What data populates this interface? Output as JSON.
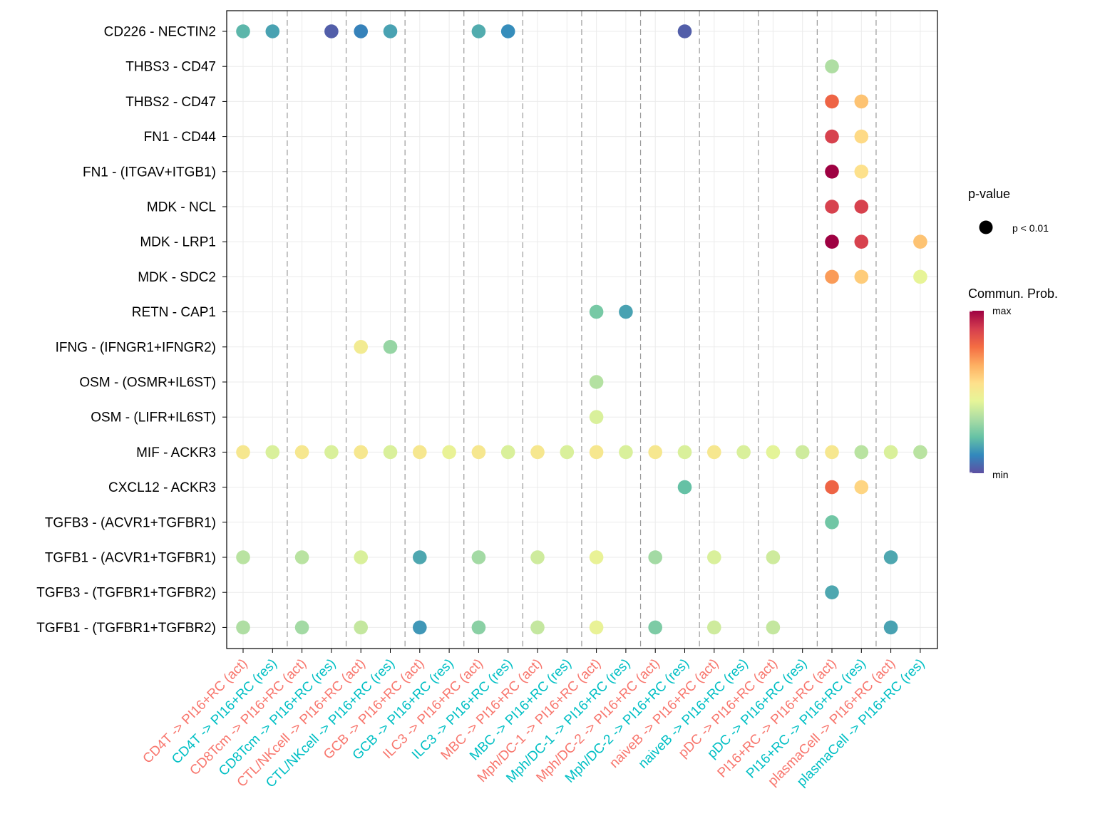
{
  "chart_data": {
    "type": "dot",
    "title": "",
    "xlabel": "",
    "ylabel": "",
    "x_categories": [
      "CD4T -> PI16+RC (act)",
      "CD4T -> PI16+RC (res)",
      "CD8Tcm -> PI16+RC (act)",
      "CD8Tcm -> PI16+RC (res)",
      "CTL/NKcell -> PI16+RC (act)",
      "CTL/NKcell -> PI16+RC (res)",
      "GCB -> PI16+RC (act)",
      "GCB -> PI16+RC (res)",
      "ILC3 -> PI16+RC (act)",
      "ILC3 -> PI16+RC (res)",
      "MBC -> PI16+RC (act)",
      "MBC -> PI16+RC (res)",
      "Mph/DC-1 -> PI16+RC (act)",
      "Mph/DC-1 -> PI16+RC (res)",
      "Mph/DC-2 -> PI16+RC (act)",
      "Mph/DC-2 -> PI16+RC (res)",
      "naiveB -> PI16+RC (act)",
      "naiveB -> PI16+RC (res)",
      "pDC -> PI16+RC (act)",
      "pDC -> PI16+RC (res)",
      "PI16+RC -> PI16+RC (act)",
      "PI16+RC -> PI16+RC (res)",
      "plasmaCell -> PI16+RC (act)",
      "plasmaCell -> PI16+RC (res)"
    ],
    "y_categories": [
      "CD226 - NECTIN2",
      "THBS3 - CD47",
      "THBS2 - CD47",
      "FN1 - CD44",
      "FN1 - (ITGAV+ITGB1)",
      "MDK - NCL",
      "MDK - LRP1",
      "MDK - SDC2",
      "RETN - CAP1",
      "IFNG - (IFNGR1+IFNGR2)",
      "OSM - (OSMR+IL6ST)",
      "OSM - (LIFR+IL6ST)",
      "MIF - ACKR3",
      "CXCL12 - ACKR3",
      "TGFB3 - (ACVR1+TGFBR1)",
      "TGFB1 - (ACVR1+TGFBR1)",
      "TGFB3 - (TGFBR1+TGFBR2)",
      "TGFB1 - (TGFBR1+TGFBR2)"
    ],
    "points": [
      {
        "x": 0,
        "y": 0,
        "prob": 0.2
      },
      {
        "x": 1,
        "y": 0,
        "prob": 0.16
      },
      {
        "x": 3,
        "y": 0,
        "prob": 0.03
      },
      {
        "x": 4,
        "y": 0,
        "prob": 0.1
      },
      {
        "x": 5,
        "y": 0,
        "prob": 0.16
      },
      {
        "x": 8,
        "y": 0,
        "prob": 0.18
      },
      {
        "x": 9,
        "y": 0,
        "prob": 0.12
      },
      {
        "x": 15,
        "y": 0,
        "prob": 0.03
      },
      {
        "x": 20,
        "y": 1,
        "prob": 0.34
      },
      {
        "x": 20,
        "y": 2,
        "prob": 0.8
      },
      {
        "x": 21,
        "y": 2,
        "prob": 0.62
      },
      {
        "x": 20,
        "y": 3,
        "prob": 0.88
      },
      {
        "x": 21,
        "y": 3,
        "prob": 0.57
      },
      {
        "x": 20,
        "y": 4,
        "prob": 1.0
      },
      {
        "x": 21,
        "y": 4,
        "prob": 0.55
      },
      {
        "x": 20,
        "y": 5,
        "prob": 0.88
      },
      {
        "x": 21,
        "y": 5,
        "prob": 0.88
      },
      {
        "x": 20,
        "y": 6,
        "prob": 1.0
      },
      {
        "x": 21,
        "y": 6,
        "prob": 0.88
      },
      {
        "x": 23,
        "y": 6,
        "prob": 0.62
      },
      {
        "x": 20,
        "y": 7,
        "prob": 0.7
      },
      {
        "x": 21,
        "y": 7,
        "prob": 0.6
      },
      {
        "x": 23,
        "y": 7,
        "prob": 0.45
      },
      {
        "x": 12,
        "y": 8,
        "prob": 0.25
      },
      {
        "x": 13,
        "y": 8,
        "prob": 0.16
      },
      {
        "x": 4,
        "y": 9,
        "prob": 0.5
      },
      {
        "x": 5,
        "y": 9,
        "prob": 0.3
      },
      {
        "x": 12,
        "y": 10,
        "prob": 0.35
      },
      {
        "x": 12,
        "y": 11,
        "prob": 0.42
      },
      {
        "x": 0,
        "y": 12,
        "prob": 0.52
      },
      {
        "x": 1,
        "y": 12,
        "prob": 0.42
      },
      {
        "x": 2,
        "y": 12,
        "prob": 0.52
      },
      {
        "x": 3,
        "y": 12,
        "prob": 0.42
      },
      {
        "x": 4,
        "y": 12,
        "prob": 0.52
      },
      {
        "x": 5,
        "y": 12,
        "prob": 0.42
      },
      {
        "x": 6,
        "y": 12,
        "prob": 0.52
      },
      {
        "x": 7,
        "y": 12,
        "prob": 0.46
      },
      {
        "x": 8,
        "y": 12,
        "prob": 0.52
      },
      {
        "x": 9,
        "y": 12,
        "prob": 0.42
      },
      {
        "x": 10,
        "y": 12,
        "prob": 0.52
      },
      {
        "x": 11,
        "y": 12,
        "prob": 0.42
      },
      {
        "x": 12,
        "y": 12,
        "prob": 0.52
      },
      {
        "x": 13,
        "y": 12,
        "prob": 0.42
      },
      {
        "x": 14,
        "y": 12,
        "prob": 0.52
      },
      {
        "x": 15,
        "y": 12,
        "prob": 0.42
      },
      {
        "x": 16,
        "y": 12,
        "prob": 0.52
      },
      {
        "x": 17,
        "y": 12,
        "prob": 0.42
      },
      {
        "x": 18,
        "y": 12,
        "prob": 0.44
      },
      {
        "x": 19,
        "y": 12,
        "prob": 0.4
      },
      {
        "x": 20,
        "y": 12,
        "prob": 0.52
      },
      {
        "x": 21,
        "y": 12,
        "prob": 0.36
      },
      {
        "x": 22,
        "y": 12,
        "prob": 0.42
      },
      {
        "x": 23,
        "y": 12,
        "prob": 0.36
      },
      {
        "x": 15,
        "y": 13,
        "prob": 0.22
      },
      {
        "x": 20,
        "y": 13,
        "prob": 0.8
      },
      {
        "x": 21,
        "y": 13,
        "prob": 0.58
      },
      {
        "x": 20,
        "y": 14,
        "prob": 0.24
      },
      {
        "x": 0,
        "y": 15,
        "prob": 0.36
      },
      {
        "x": 2,
        "y": 15,
        "prob": 0.36
      },
      {
        "x": 4,
        "y": 15,
        "prob": 0.42
      },
      {
        "x": 6,
        "y": 15,
        "prob": 0.17
      },
      {
        "x": 8,
        "y": 15,
        "prob": 0.32
      },
      {
        "x": 10,
        "y": 15,
        "prob": 0.4
      },
      {
        "x": 12,
        "y": 15,
        "prob": 0.46
      },
      {
        "x": 14,
        "y": 15,
        "prob": 0.32
      },
      {
        "x": 16,
        "y": 15,
        "prob": 0.42
      },
      {
        "x": 18,
        "y": 15,
        "prob": 0.4
      },
      {
        "x": 22,
        "y": 15,
        "prob": 0.17
      },
      {
        "x": 20,
        "y": 16,
        "prob": 0.17
      },
      {
        "x": 0,
        "y": 17,
        "prob": 0.34
      },
      {
        "x": 2,
        "y": 17,
        "prob": 0.32
      },
      {
        "x": 4,
        "y": 17,
        "prob": 0.38
      },
      {
        "x": 6,
        "y": 17,
        "prob": 0.14
      },
      {
        "x": 8,
        "y": 17,
        "prob": 0.28
      },
      {
        "x": 10,
        "y": 17,
        "prob": 0.38
      },
      {
        "x": 12,
        "y": 17,
        "prob": 0.46
      },
      {
        "x": 14,
        "y": 17,
        "prob": 0.26
      },
      {
        "x": 16,
        "y": 17,
        "prob": 0.4
      },
      {
        "x": 18,
        "y": 17,
        "prob": 0.38
      },
      {
        "x": 22,
        "y": 17,
        "prob": 0.16
      }
    ],
    "x_label_colors": {
      "act": "#F8766D",
      "res": "#00BFC4"
    },
    "colormap": [
      "#5E4FA2",
      "#3288BD",
      "#66C2A5",
      "#ABDDA4",
      "#E6F598",
      "#FEE08B",
      "#FDAE61",
      "#F46D43",
      "#D53E4F",
      "#9E0142"
    ],
    "grid": true,
    "legend": {
      "pvalue_title": "p-value",
      "pvalue_label": "p < 0.01",
      "colorbar_title": "Commun. Prob.",
      "colorbar_max": "max",
      "colorbar_min": "min",
      "placement": "right"
    }
  }
}
